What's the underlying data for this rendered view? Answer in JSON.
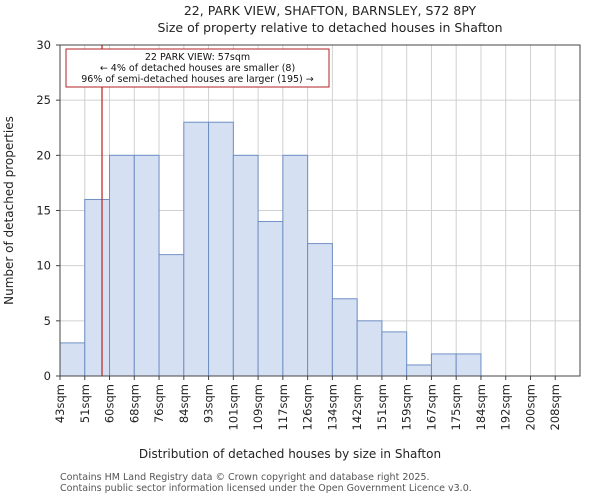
{
  "chart_data": {
    "type": "bar",
    "title": "22, PARK VIEW, SHAFTON, BARNSLEY, S72 8PY",
    "subtitle": "Size of property relative to detached houses in Shafton",
    "xlabel": "Distribution of detached houses by size in Shafton",
    "ylabel": "Number of detached properties",
    "categories": [
      "43sqm",
      "51sqm",
      "60sqm",
      "68sqm",
      "76sqm",
      "84sqm",
      "93sqm",
      "101sqm",
      "109sqm",
      "117sqm",
      "126sqm",
      "134sqm",
      "142sqm",
      "151sqm",
      "159sqm",
      "167sqm",
      "175sqm",
      "184sqm",
      "192sqm",
      "200sqm",
      "208sqm"
    ],
    "values": [
      3,
      16,
      20,
      20,
      11,
      23,
      23,
      20,
      14,
      20,
      12,
      7,
      5,
      4,
      1,
      2,
      2,
      0,
      0,
      0,
      0
    ],
    "ylim": [
      0,
      30
    ],
    "yticks": [
      0,
      5,
      10,
      15,
      20,
      25,
      30
    ],
    "grid": true,
    "bar_color": "#d6e0f3",
    "bar_edge_color": "#6f8fc4",
    "marker": {
      "value_sqm": 57,
      "color": "#b22222"
    },
    "annotation": {
      "line1": "22 PARK VIEW: 57sqm",
      "line2": "← 4% of detached houses are smaller (8)",
      "line3": "96% of semi-detached houses are larger (195) →"
    }
  },
  "footer": {
    "line1": "Contains HM Land Registry data © Crown copyright and database right 2025.",
    "line2": "Contains public sector information licensed under the Open Government Licence v3.0."
  }
}
